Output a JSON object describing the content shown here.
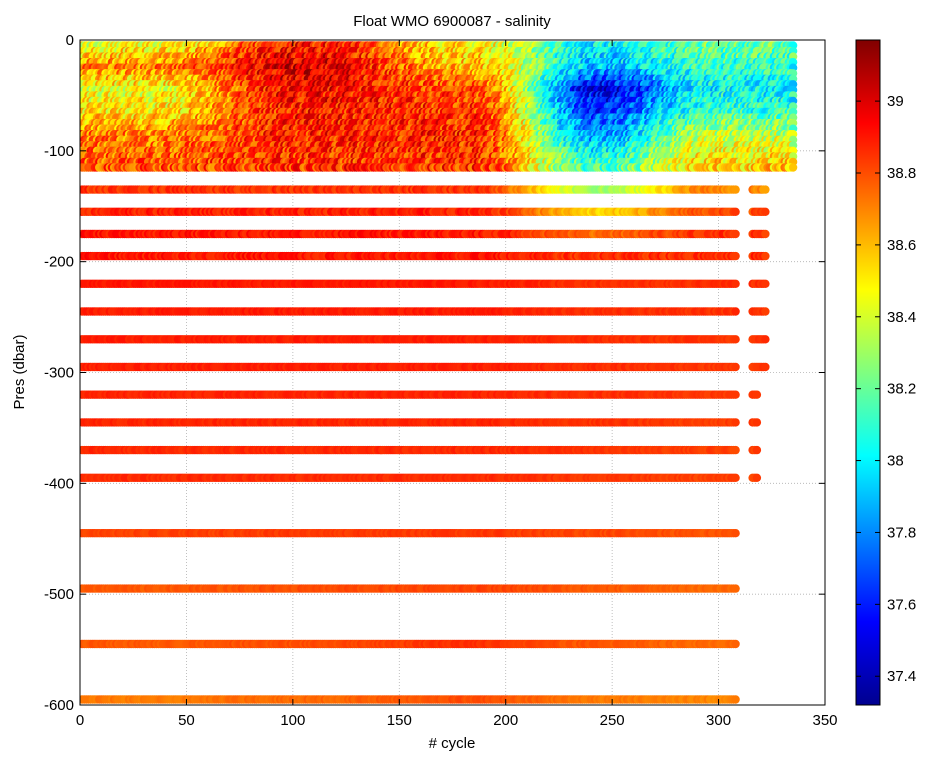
{
  "chart_data": {
    "type": "scatter",
    "title": "Float WMO 6900087 - salinity",
    "xlabel": "# cycle",
    "ylabel": "Pres (dbar)",
    "xlim": [
      0,
      350
    ],
    "ylim": [
      -600,
      0
    ],
    "x_ticks": [
      0,
      50,
      100,
      150,
      200,
      250,
      300,
      350
    ],
    "y_ticks": [
      0,
      -100,
      -200,
      -300,
      -400,
      -500,
      -600
    ],
    "grid": true,
    "colorbar": {
      "colormap": "jet",
      "limits": [
        37.32,
        39.17
      ],
      "ticks": [
        37.4,
        37.6,
        37.8,
        38,
        38.2,
        38.4,
        38.6,
        38.8,
        39
      ]
    },
    "cycles": {
      "last_cycle_shallow": 335,
      "last_cycle_to_300dbar": 322,
      "last_cycle_to_400dbar": 318,
      "last_cycle_to_600dbar": 308,
      "isolated_deep_profiles": [
        316,
        318
      ]
    },
    "pressure_levels": [
      -5,
      -10,
      -15,
      -20,
      -25,
      -30,
      -35,
      -40,
      -45,
      -50,
      -55,
      -60,
      -65,
      -70,
      -75,
      -80,
      -85,
      -90,
      -95,
      -100,
      -105,
      -110,
      -115,
      -135,
      -155,
      -175,
      -195,
      -220,
      -245,
      -270,
      -295,
      -320,
      -345,
      -370,
      -395,
      -445,
      -495,
      -545,
      -595
    ],
    "salinity_profile_by_regime": {
      "pressure": [
        -5,
        -25,
        -45,
        -65,
        -85,
        -105,
        -135,
        -155,
        -175,
        -195,
        -300,
        -400,
        -495,
        -545,
        -595
      ],
      "cycles_0_to_70": [
        38.45,
        38.7,
        38.45,
        38.5,
        38.7,
        38.75,
        38.85,
        38.88,
        38.9,
        38.9,
        38.88,
        38.86,
        38.78,
        38.78,
        38.72
      ],
      "cycles_70_to_140": [
        38.9,
        39.02,
        38.95,
        38.9,
        38.88,
        38.85,
        38.85,
        38.88,
        38.9,
        38.9,
        38.88,
        38.86,
        38.8,
        38.8,
        38.75
      ],
      "cycles_140_to_230": [
        38.5,
        38.6,
        38.8,
        38.85,
        38.88,
        38.85,
        38.85,
        38.88,
        38.9,
        38.9,
        38.88,
        38.86,
        38.82,
        38.85,
        38.8
      ],
      "cycles_230_to_260": [
        38.0,
        37.9,
        37.5,
        37.65,
        37.8,
        38.05,
        38.3,
        38.55,
        38.75,
        38.85,
        38.86,
        38.84,
        38.78,
        38.78,
        38.72
      ],
      "cycles_260_to_335": [
        38.2,
        38.1,
        38.0,
        38.1,
        38.35,
        38.5,
        38.7,
        38.8,
        38.85,
        38.86,
        38.84,
        38.82,
        38.75,
        38.75,
        38.7
      ]
    }
  }
}
